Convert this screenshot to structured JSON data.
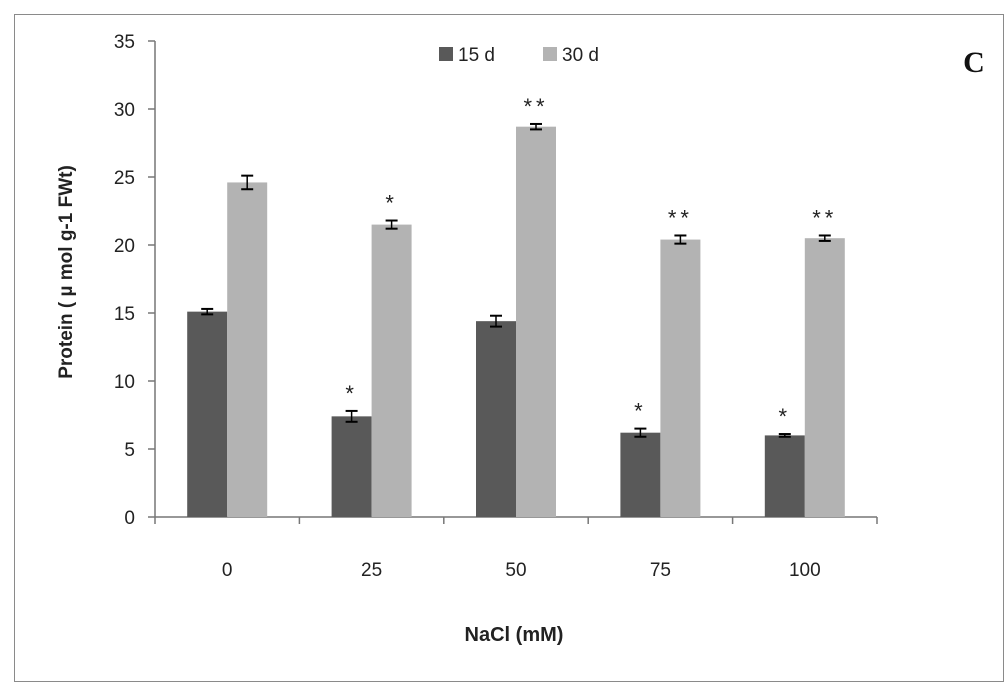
{
  "panel_label": "C",
  "chart_data": {
    "type": "bar",
    "title": "",
    "xlabel": "NaCl (mM)",
    "ylabel": "Protein ( µ mol g-1 FWt)",
    "ylim": [
      0,
      35
    ],
    "yticks": [
      0,
      5,
      10,
      15,
      20,
      25,
      30,
      35
    ],
    "categories": [
      "0",
      "25",
      "50",
      "75",
      "100"
    ],
    "legend_position": "top-center",
    "grid": false,
    "series": [
      {
        "name": "15 d",
        "color": "#595959",
        "values": [
          15.1,
          7.4,
          14.4,
          6.2,
          6.0
        ],
        "errors": [
          0.2,
          0.4,
          0.4,
          0.3,
          0.1
        ],
        "annotations": [
          "",
          "*",
          "",
          "*",
          "*"
        ]
      },
      {
        "name": "30 d",
        "color": "#b3b3b3",
        "values": [
          24.6,
          21.5,
          28.7,
          20.4,
          20.5
        ],
        "errors": [
          0.5,
          0.3,
          0.2,
          0.3,
          0.2
        ],
        "annotations": [
          "",
          "*",
          "**",
          "**",
          "**"
        ]
      }
    ]
  }
}
